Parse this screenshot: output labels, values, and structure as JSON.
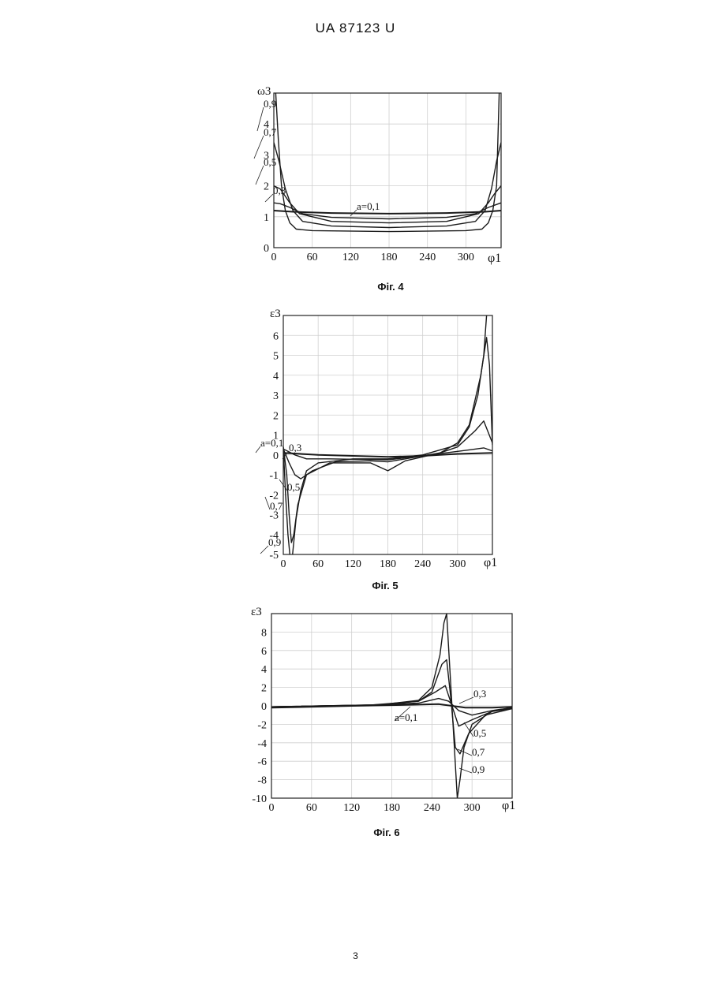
{
  "header": "UA   87123   U",
  "page_number": "3",
  "chart_data": [
    {
      "type": "line",
      "caption": "Фіг. 4",
      "ylabel": "ω3",
      "xlabel": "φ1",
      "x_ticks": [
        "0",
        "60",
        "120",
        "180",
        "240",
        "300"
      ],
      "y_ticks": [
        "0",
        "1",
        "2",
        "3",
        "4"
      ],
      "xlim": [
        0,
        355
      ],
      "ylim": [
        0,
        5
      ],
      "grid": true,
      "series": [
        {
          "name": "a=0,1",
          "x": [
            0,
            30,
            90,
            180,
            270,
            330,
            355
          ],
          "y": [
            1.2,
            1.16,
            1.12,
            1.1,
            1.12,
            1.16,
            1.2
          ]
        },
        {
          "name": "0,3",
          "x": [
            0,
            10,
            25,
            45,
            90,
            180,
            270,
            315,
            335,
            355
          ],
          "y": [
            1.45,
            1.42,
            1.3,
            1.1,
            0.98,
            0.93,
            0.98,
            1.1,
            1.3,
            1.45
          ]
        },
        {
          "name": "0,5",
          "x": [
            0,
            10,
            25,
            40,
            90,
            180,
            270,
            320,
            335,
            345,
            355
          ],
          "y": [
            2.0,
            1.9,
            1.45,
            1.1,
            0.85,
            0.8,
            0.85,
            1.1,
            1.45,
            1.75,
            2.0
          ]
        },
        {
          "name": "0,7",
          "x": [
            0,
            8,
            18,
            30,
            45,
            90,
            180,
            270,
            315,
            330,
            340,
            348,
            355
          ],
          "y": [
            3.4,
            2.8,
            1.9,
            1.2,
            0.85,
            0.7,
            0.65,
            0.7,
            0.85,
            1.2,
            1.9,
            2.8,
            3.4
          ]
        },
        {
          "name": "0,9",
          "x": [
            3,
            7,
            12,
            18,
            25,
            35,
            60,
            180,
            300,
            325,
            335,
            342,
            348,
            352
          ],
          "y": [
            5,
            3.5,
            2.0,
            1.2,
            0.8,
            0.6,
            0.55,
            0.52,
            0.55,
            0.6,
            0.8,
            1.2,
            2.0,
            5
          ]
        }
      ]
    },
    {
      "type": "line",
      "caption": "Фіг. 5",
      "ylabel": "ε3",
      "xlabel": "φ1",
      "x_ticks": [
        "0",
        "60",
        "120",
        "180",
        "240",
        "300"
      ],
      "y_ticks": [
        "-5",
        "-4",
        "-3",
        "-2",
        "-1",
        "0",
        "1",
        "2",
        "3",
        "4",
        "5",
        "6"
      ],
      "xlim": [
        0,
        360
      ],
      "ylim": [
        -5,
        7
      ],
      "grid": true,
      "series": [
        {
          "name": "a=0,1",
          "x": [
            0,
            60,
            120,
            180,
            240,
            300,
            360
          ],
          "y": [
            0.1,
            0.0,
            -0.05,
            -0.1,
            -0.05,
            0.05,
            0.1
          ]
        },
        {
          "name": "0,3",
          "x": [
            0,
            20,
            40,
            80,
            180,
            280,
            320,
            345,
            360
          ],
          "y": [
            0.3,
            0.0,
            -0.2,
            -0.2,
            -0.25,
            0.1,
            0.25,
            0.35,
            0.2
          ]
        },
        {
          "name": "0,5",
          "x": [
            0,
            10,
            20,
            30,
            50,
            90,
            150,
            180,
            210,
            270,
            300,
            330,
            345,
            360
          ],
          "y": [
            0.3,
            -0.4,
            -1.0,
            -1.2,
            -0.8,
            -0.35,
            -0.3,
            -0.35,
            -0.2,
            0.1,
            0.4,
            1.2,
            1.7,
            0.6
          ]
        },
        {
          "name": "0,7",
          "x": [
            0,
            6,
            10,
            14,
            18,
            25,
            40,
            80,
            150,
            180,
            210,
            270,
            300,
            320,
            340,
            350,
            355,
            360
          ],
          "y": [
            0.4,
            -1.0,
            -3.0,
            -4.4,
            -4.0,
            -2.5,
            -1.0,
            -0.4,
            -0.4,
            -0.8,
            -0.3,
            0.1,
            0.6,
            1.5,
            4.0,
            5.9,
            4.5,
            0.5
          ]
        },
        {
          "name": "0,9",
          "x": [
            0,
            4,
            8,
            12,
            15,
            22,
            30,
            40,
            60,
            120,
            180,
            240,
            300,
            320,
            335,
            345,
            350
          ],
          "y": [
            0.4,
            -2.0,
            -4.0,
            -5.2,
            -5.3,
            -3.2,
            -1.8,
            -0.8,
            -0.4,
            -0.2,
            -0.2,
            0.0,
            0.5,
            1.4,
            3.0,
            5.0,
            7.0
          ]
        }
      ]
    },
    {
      "type": "line",
      "caption": "Фіг. 6",
      "ylabel": "ε3",
      "xlabel": "φ1",
      "x_ticks": [
        "0",
        "60",
        "120",
        "180",
        "240",
        "300"
      ],
      "y_ticks": [
        "-10",
        "-8",
        "-6",
        "-4",
        "-2",
        "0",
        "2",
        "4",
        "6",
        "8"
      ],
      "xlim": [
        0,
        360
      ],
      "ylim": [
        -10,
        10
      ],
      "grid": true,
      "series": [
        {
          "name": "a=0,1",
          "x": [
            0,
            120,
            200,
            250,
            270,
            290,
            330,
            360
          ],
          "y": [
            -0.2,
            0.0,
            0.1,
            0.2,
            0.0,
            -0.2,
            -0.2,
            -0.1
          ]
        },
        {
          "name": "0,3",
          "x": [
            0,
            150,
            220,
            250,
            265,
            280,
            300,
            330,
            360
          ],
          "y": [
            -0.1,
            0.1,
            0.3,
            0.8,
            0.5,
            -0.5,
            -1.0,
            -0.5,
            -0.2
          ]
        },
        {
          "name": "0,5",
          "x": [
            0,
            150,
            220,
            245,
            260,
            270,
            280,
            300,
            330,
            360
          ],
          "y": [
            -0.1,
            0.1,
            0.5,
            1.5,
            2.2,
            0.0,
            -2.2,
            -1.5,
            -0.6,
            -0.3
          ]
        },
        {
          "name": "0,7",
          "x": [
            0,
            160,
            220,
            240,
            255,
            262,
            268,
            275,
            282,
            295,
            320,
            360
          ],
          "y": [
            -0.1,
            0.1,
            0.5,
            1.5,
            4.5,
            5.0,
            1.0,
            -4.5,
            -5.2,
            -3.0,
            -1.0,
            -0.3
          ]
        },
        {
          "name": "0,9",
          "x": [
            0,
            160,
            220,
            240,
            252,
            258,
            262,
            278,
            282,
            288,
            300,
            330,
            360
          ],
          "y": [
            -0.1,
            0.1,
            0.6,
            2.0,
            5.5,
            9.0,
            10.0,
            -10.0,
            -8.0,
            -4.5,
            -2.0,
            -0.6,
            -0.2
          ]
        }
      ]
    }
  ]
}
